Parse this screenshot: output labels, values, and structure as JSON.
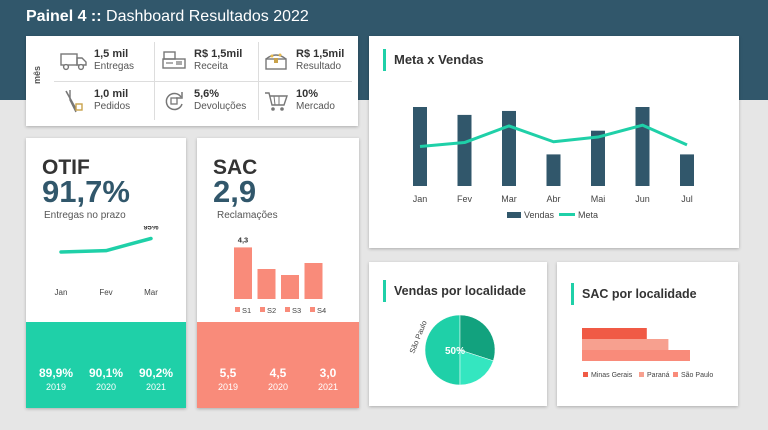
{
  "header": {
    "title_bold": "Painel 4 ::",
    "title_rest": " Dashboard Resultados 2022"
  },
  "kpi": {
    "period_label": "mês",
    "items": [
      {
        "value": "1,5 mil",
        "label": "Entregas",
        "icon": "delivery-truck-icon"
      },
      {
        "value": "R$ 1,5mil",
        "label": "Receita",
        "icon": "cash-register-icon"
      },
      {
        "value": "R$ 1,5mil",
        "label": "Resultado",
        "icon": "treasure-chest-icon"
      },
      {
        "value": "1,0 mil",
        "label": "Pedidos",
        "icon": "order-tools-icon"
      },
      {
        "value": "5,6%",
        "label": "Devoluções",
        "icon": "return-cycle-icon"
      },
      {
        "value": "10%",
        "label": "Mercado",
        "icon": "shopping-cart-icon"
      }
    ]
  },
  "otif": {
    "name": "OTIF",
    "value": "91,7%",
    "subtitle": "Entregas no prazo",
    "peak_label": "95%",
    "footer_color": "#1fd0a8",
    "years": [
      {
        "value": "89,9%",
        "year": "2019"
      },
      {
        "value": "90,1%",
        "year": "2020"
      },
      {
        "value": "90,2%",
        "year": "2021"
      }
    ]
  },
  "sac": {
    "name": "SAC",
    "value": "2,9",
    "subtitle": "Reclamações",
    "footer_color": "#f98b7a",
    "years": [
      {
        "value": "5,5",
        "year": "2019"
      },
      {
        "value": "4,5",
        "year": "2020"
      },
      {
        "value": "3,0",
        "year": "2021"
      }
    ]
  },
  "meta_vendas": {
    "title": "Meta x Vendas"
  },
  "vendas_localidade": {
    "title": "Vendas por localidade"
  },
  "sac_localidade": {
    "title": "SAC por localidade"
  },
  "chart_data": [
    {
      "id": "meta-x-vendas",
      "type": "bar",
      "categories": [
        "Jan",
        "Fev",
        "Mar",
        "Abr",
        "Mai",
        "Jun",
        "Jul"
      ],
      "series": [
        {
          "name": "Vendas",
          "type": "bar",
          "color": "#31576b",
          "values": [
            100,
            90,
            95,
            40,
            70,
            100,
            40
          ]
        },
        {
          "name": "Meta",
          "type": "line",
          "color": "#1fd0a8",
          "values": [
            50,
            55,
            76,
            56,
            62,
            77,
            52
          ]
        }
      ],
      "ylim": [
        0,
        100
      ]
    },
    {
      "id": "otif-line",
      "type": "line",
      "categories": [
        "Jan",
        "Fev",
        "Mar"
      ],
      "series": [
        {
          "name": "",
          "color": "#1fd0a8",
          "values": [
            92,
            92.3,
            95
          ]
        }
      ],
      "annotations": [
        "95%"
      ],
      "ylim": [
        80,
        100
      ]
    },
    {
      "id": "sac-bars",
      "type": "bar",
      "categories": [
        "S1",
        "S2",
        "S3",
        "S4"
      ],
      "series": [
        {
          "name": "",
          "color": "#f98b7a",
          "values": [
            4.3,
            2.5,
            2.0,
            3.0
          ]
        }
      ],
      "data_labels": [
        "4,3",
        "",
        "",
        ""
      ],
      "ylim": [
        0,
        5
      ]
    },
    {
      "id": "vendas-localidade",
      "type": "pie",
      "slices": [
        {
          "label": "São Paulo",
          "value": 50,
          "color": "#1fd0a8"
        },
        {
          "value": 30,
          "color": "#12a27e"
        },
        {
          "value": 20,
          "color": "#34e6c0"
        }
      ],
      "data_labels": [
        "50%"
      ]
    },
    {
      "id": "sac-localidade",
      "type": "bar",
      "orientation": "horizontal",
      "series": [
        {
          "name": "Minas Gerais",
          "color": "#f05a45",
          "values": [
            60
          ]
        },
        {
          "name": "Paraná",
          "color": "#f7a08f",
          "values": [
            80
          ]
        },
        {
          "name": "São Paulo",
          "color": "#f98b7a",
          "values": [
            100
          ]
        }
      ],
      "xlim": [
        0,
        100
      ]
    }
  ]
}
